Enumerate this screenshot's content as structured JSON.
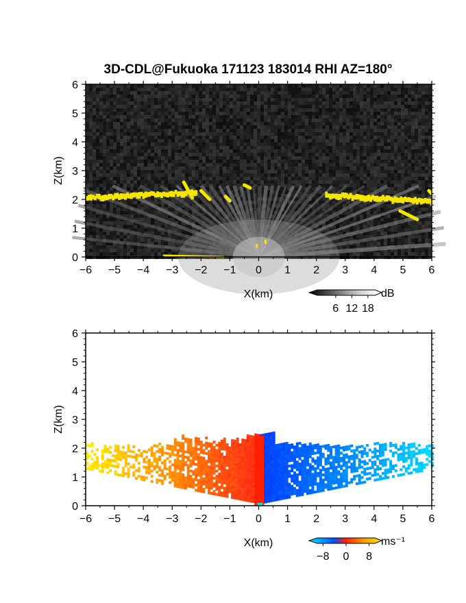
{
  "title": "3D-CDL@Fukuoka 171123 183014 RHI AZ=180°",
  "colors": {
    "snr_background": "#1e1e1e",
    "snr_highlight": "#f5e600",
    "velocity_negative": "#0050ff",
    "velocity_zero": "#ff2000",
    "velocity_positive": "#ffe800"
  },
  "chart_data": [
    {
      "type": "heatmap",
      "title": "",
      "xlabel": "X(km)",
      "ylabel": "Z(km)",
      "xlim": [
        -6,
        6
      ],
      "ylim": [
        0,
        6
      ],
      "x_ticks": [
        "-6",
        "-5",
        "-4",
        "-3",
        "-2",
        "-1",
        "0",
        "1",
        "2",
        "3",
        "4",
        "5",
        "6"
      ],
      "y_ticks": [
        "0",
        "1",
        "2",
        "3",
        "4",
        "5",
        "6"
      ],
      "colorbar": {
        "unit": "dB",
        "ticks": [
          "6",
          "12",
          "18"
        ],
        "colormap": "grayscale-to-yellow"
      },
      "features": [
        {
          "name": "yellow layer west",
          "x_range": [
            -6,
            -2.2
          ],
          "z": 2.1
        },
        {
          "name": "yellow layer east",
          "x_range": [
            2.3,
            6
          ],
          "z": 2.1
        },
        {
          "name": "surface echo",
          "x_range": [
            -3.3,
            -1.2
          ],
          "z": 0.1
        }
      ]
    },
    {
      "type": "heatmap",
      "title": "",
      "xlabel": "X(km)",
      "ylabel": "Z(km)",
      "xlim": [
        -6,
        6
      ],
      "ylim": [
        0,
        6
      ],
      "x_ticks": [
        "-6",
        "-5",
        "-4",
        "-3",
        "-2",
        "-1",
        "0",
        "1",
        "2",
        "3",
        "4",
        "5",
        "6"
      ],
      "y_ticks": [
        "0",
        "1",
        "2",
        "3",
        "4",
        "5",
        "6"
      ],
      "colorbar": {
        "unit": "ms⁻¹",
        "ticks": [
          "-8",
          "0",
          "8"
        ],
        "colormap": "blue-red-yellow"
      },
      "features": [
        {
          "name": "west sector",
          "x_range": [
            -6,
            0
          ],
          "velocity_sign": "positive"
        },
        {
          "name": "east sector",
          "x_range": [
            0,
            6
          ],
          "velocity_sign": "negative"
        },
        {
          "name": "echo top",
          "z": 2.3
        }
      ]
    }
  ]
}
